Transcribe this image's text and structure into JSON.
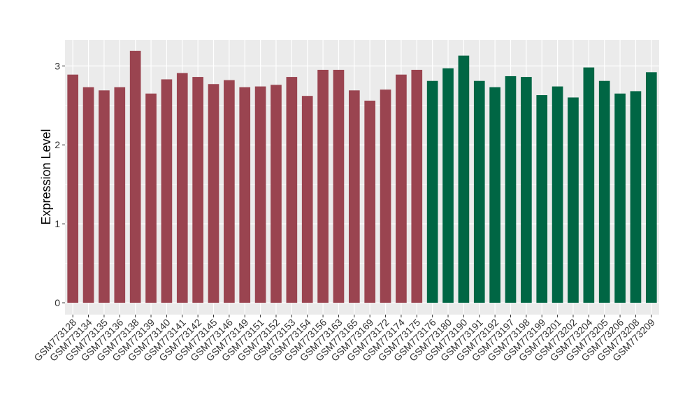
{
  "chart_data": {
    "type": "bar",
    "title": "",
    "xlabel": "",
    "ylabel": "Expression Level",
    "ylim": [
      -0.15,
      3.33
    ],
    "yticks": [
      0,
      1,
      2,
      3
    ],
    "grid": true,
    "colors": {
      "group1": "#9a4450",
      "group2": "#006644",
      "panel": "#ebebeb",
      "grid": "#ffffff"
    },
    "categories": [
      "GSM773128",
      "GSM773134",
      "GSM773135",
      "GSM773136",
      "GSM773138",
      "GSM773139",
      "GSM773140",
      "GSM773141",
      "GSM773142",
      "GSM773145",
      "GSM773146",
      "GSM773149",
      "GSM773151",
      "GSM773152",
      "GSM773153",
      "GSM773154",
      "GSM773156",
      "GSM773163",
      "GSM773165",
      "GSM773169",
      "GSM773172",
      "GSM773174",
      "GSM773175",
      "GSM773176",
      "GSM773180",
      "GSM773190",
      "GSM773191",
      "GSM773192",
      "GSM773197",
      "GSM773198",
      "GSM773199",
      "GSM773201",
      "GSM773202",
      "GSM773204",
      "GSM773205",
      "GSM773206",
      "GSM773208",
      "GSM773209"
    ],
    "values": [
      2.89,
      2.73,
      2.69,
      2.73,
      3.19,
      2.65,
      2.83,
      2.91,
      2.86,
      2.77,
      2.82,
      2.73,
      2.74,
      2.76,
      2.86,
      2.62,
      2.95,
      2.95,
      2.69,
      2.56,
      2.7,
      2.89,
      2.95,
      2.81,
      2.97,
      3.13,
      2.81,
      2.73,
      2.87,
      2.86,
      2.63,
      2.74,
      2.6,
      2.98,
      2.81,
      2.65,
      2.68,
      2.92
    ],
    "groups": [
      1,
      1,
      1,
      1,
      1,
      1,
      1,
      1,
      1,
      1,
      1,
      1,
      1,
      1,
      1,
      1,
      1,
      1,
      1,
      1,
      1,
      1,
      1,
      2,
      2,
      2,
      2,
      2,
      2,
      2,
      2,
      2,
      2,
      2,
      2,
      2,
      2,
      2
    ]
  }
}
